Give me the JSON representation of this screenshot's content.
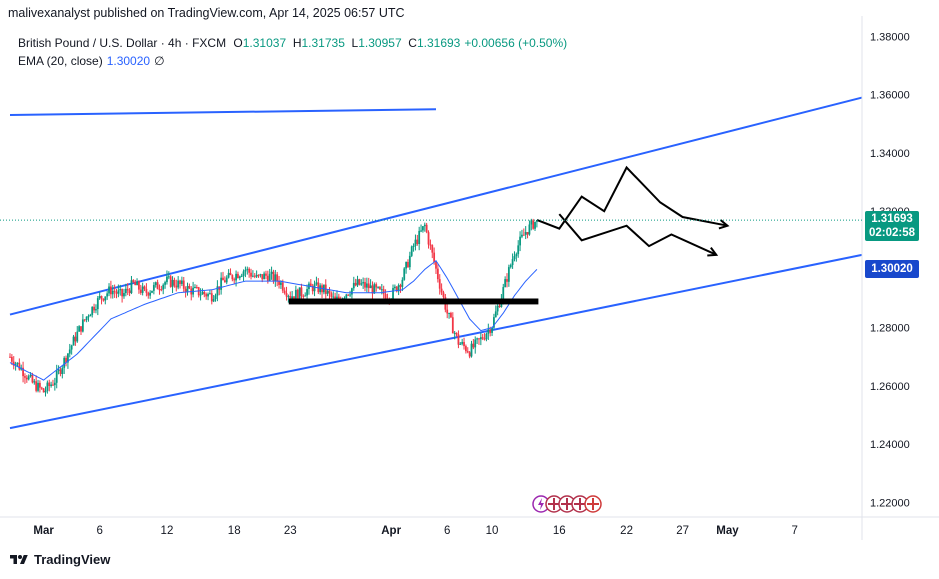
{
  "header": {
    "attribution": "malivexanalyst published on TradingView.com, Apr 14, 2025 06:57 UTC"
  },
  "legend": {
    "symbol": "British Pound / U.S. Dollar · 4h · FXCM",
    "open_label": "O",
    "open": "1.31037",
    "high_label": "H",
    "high": "1.31735",
    "low_label": "L",
    "low": "1.30957",
    "close_label": "C",
    "close": "1.31693",
    "change": "+0.00656 (+0.50%)",
    "ema_label": "EMA (20, close)",
    "ema_value": "1.30020",
    "ema_extra": "∅"
  },
  "price_tag": {
    "price": "1.31693",
    "countdown": "02:02:58",
    "color": "#089981"
  },
  "ema_tag": {
    "value": "1.30020",
    "color": "#1848cc"
  },
  "footer": {
    "brand": "TradingView"
  },
  "colors": {
    "up": "#089981",
    "down": "#f23645",
    "channel": "#2962ff",
    "ema": "#2962ff",
    "drawing": "#000000"
  },
  "chart_data": {
    "type": "candlestick",
    "symbol": "GBPUSD",
    "timeframe": "4h",
    "y_axis": {
      "ticks": [
        "1.38000",
        "1.36000",
        "1.34000",
        "1.32000",
        "1.30000",
        "1.28000",
        "1.26000",
        "1.24000",
        "1.22000"
      ],
      "ylim": [
        1.215,
        1.387
      ],
      "position": "right"
    },
    "x_axis": {
      "ticks": [
        "Mar",
        "6",
        "12",
        "18",
        "23",
        "Apr",
        "6",
        "10",
        "16",
        "22",
        "27",
        "May",
        "7"
      ],
      "tick_days": [
        0,
        5,
        11,
        17,
        22,
        31,
        36,
        40,
        46,
        52,
        57,
        61,
        67
      ],
      "xlim_days": [
        -3,
        73
      ],
      "day0": "Mar 1"
    },
    "last_close": 1.31693,
    "ema_last": 1.3002,
    "price_path": [
      [
        -3,
        1.27
      ],
      [
        -2,
        1.266
      ],
      [
        -1,
        1.261
      ],
      [
        0,
        1.258
      ],
      [
        1,
        1.262
      ],
      [
        2,
        1.27
      ],
      [
        3,
        1.278
      ],
      [
        4,
        1.285
      ],
      [
        5,
        1.29
      ],
      [
        6,
        1.293
      ],
      [
        7,
        1.291
      ],
      [
        8,
        1.295
      ],
      [
        9,
        1.292
      ],
      [
        10,
        1.294
      ],
      [
        11,
        1.296
      ],
      [
        12,
        1.295
      ],
      [
        13,
        1.293
      ],
      [
        14,
        1.292
      ],
      [
        15,
        1.291
      ],
      [
        16,
        1.296
      ],
      [
        17,
        1.298
      ],
      [
        18,
        1.3
      ],
      [
        19,
        1.297
      ],
      [
        20,
        1.298
      ],
      [
        21,
        1.296
      ],
      [
        22,
        1.291
      ],
      [
        23,
        1.292
      ],
      [
        24,
        1.294
      ],
      [
        25,
        1.293
      ],
      [
        26,
        1.289
      ],
      [
        27,
        1.292
      ],
      [
        28,
        1.295
      ],
      [
        29,
        1.294
      ],
      [
        30,
        1.292
      ],
      [
        31,
        1.291
      ],
      [
        32,
        1.297
      ],
      [
        33,
        1.308
      ],
      [
        34,
        1.315
      ],
      [
        35,
        1.3
      ],
      [
        36,
        1.285
      ],
      [
        37,
        1.275
      ],
      [
        38,
        1.272
      ],
      [
        39,
        1.276
      ],
      [
        40,
        1.281
      ],
      [
        41,
        1.293
      ],
      [
        42,
        1.306
      ],
      [
        43,
        1.313
      ],
      [
        44,
        1.317
      ]
    ],
    "ema_path": [
      [
        -3,
        1.268
      ],
      [
        0,
        1.262
      ],
      [
        3,
        1.271
      ],
      [
        6,
        1.283
      ],
      [
        9,
        1.288
      ],
      [
        12,
        1.292
      ],
      [
        15,
        1.293
      ],
      [
        18,
        1.296
      ],
      [
        21,
        1.296
      ],
      [
        24,
        1.294
      ],
      [
        27,
        1.292
      ],
      [
        30,
        1.292
      ],
      [
        32,
        1.293
      ],
      [
        33,
        1.296
      ],
      [
        34,
        1.3
      ],
      [
        35,
        1.303
      ],
      [
        36,
        1.297
      ],
      [
        37,
        1.29
      ],
      [
        38,
        1.283
      ],
      [
        39,
        1.279
      ],
      [
        40,
        1.28
      ],
      [
        41,
        1.285
      ],
      [
        42,
        1.291
      ],
      [
        43,
        1.296
      ],
      [
        44,
        1.3
      ]
    ],
    "annotations": {
      "channel_upper": [
        [
          -3,
          1.2845
        ],
        [
          73,
          1.359
        ]
      ],
      "channel_lower": [
        [
          -3,
          1.2455
        ],
        [
          73,
          1.305
        ]
      ],
      "channel_top_segment": [
        [
          -3,
          1.353
        ],
        [
          35,
          1.355
        ]
      ],
      "support_zone": [
        [
          22,
          1.2895
        ],
        [
          44,
          1.2885
        ]
      ],
      "projection_upper": [
        [
          44,
          1.317
        ],
        [
          46,
          1.314
        ],
        [
          48,
          1.325
        ],
        [
          50,
          1.32
        ],
        [
          52,
          1.335
        ],
        [
          55,
          1.323
        ],
        [
          57,
          1.318
        ],
        [
          61,
          1.315
        ]
      ],
      "projection_lower": [
        [
          46,
          1.319
        ],
        [
          48,
          1.31
        ],
        [
          52,
          1.315
        ],
        [
          54,
          1.308
        ],
        [
          56,
          1.312
        ],
        [
          60,
          1.305
        ]
      ]
    },
    "event_icons": [
      "lightning",
      "uk-flag",
      "uk-flag",
      "uk-flag",
      "us-flag"
    ]
  }
}
